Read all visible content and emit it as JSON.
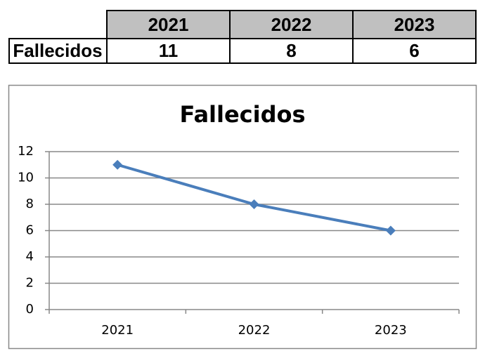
{
  "table": {
    "columns": [
      "2021",
      "2022",
      "2023"
    ],
    "rows": [
      {
        "label": "Fallecidos",
        "values": [
          11,
          8,
          6
        ]
      }
    ]
  },
  "chart_data": {
    "type": "line",
    "title": "Fallecidos",
    "categories": [
      "2021",
      "2022",
      "2023"
    ],
    "values": [
      11,
      8,
      6
    ],
    "color": "#4a7ebb",
    "marker": "diamond",
    "ylim": [
      0,
      12
    ],
    "yticks": [
      0,
      2,
      4,
      6,
      8,
      10,
      12
    ],
    "grid": true
  }
}
